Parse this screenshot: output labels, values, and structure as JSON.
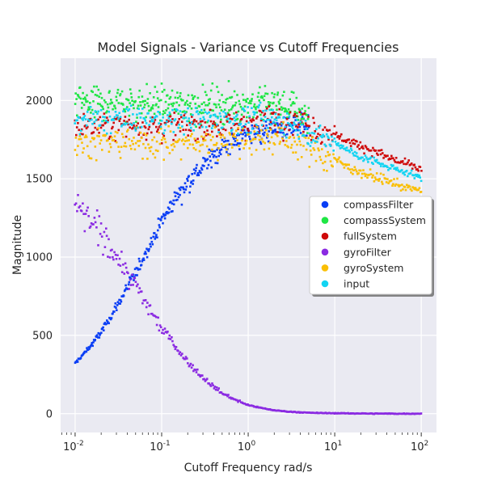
{
  "chart_data": {
    "type": "scatter",
    "title": "Model Signals - Variance vs Cutoff Frequencies",
    "xlabel": "Cutoff Frequency rad/s",
    "ylabel": "Magnitude",
    "xscale": "log",
    "xlim": [
      0.0068,
      150
    ],
    "ylim": [
      -120,
      2270
    ],
    "grid": true,
    "legend_loc": "center right",
    "background": "#eaeaf2",
    "x_ticks": [
      {
        "value": 0.01,
        "base": "10",
        "exp": "-2"
      },
      {
        "value": 0.1,
        "base": "10",
        "exp": "-1"
      },
      {
        "value": 1,
        "base": "10",
        "exp": "0"
      },
      {
        "value": 10,
        "base": "10",
        "exp": "1"
      },
      {
        "value": 100,
        "base": "10",
        "exp": "2"
      }
    ],
    "y_ticks": [
      {
        "value": 0,
        "label": "0"
      },
      {
        "value": 500,
        "label": "500"
      },
      {
        "value": 1000,
        "label": "1000"
      },
      {
        "value": 1500,
        "label": "1500"
      },
      {
        "value": 2000,
        "label": "2000"
      }
    ],
    "series": [
      {
        "name": "compassFilter",
        "color": "#0a3ef5",
        "x": [
          0.01,
          0.015,
          0.02,
          0.03,
          0.05,
          0.07,
          0.1,
          0.15,
          0.2,
          0.3,
          0.5,
          0.7,
          1,
          1.5,
          2,
          3,
          5
        ],
        "y": [
          320,
          430,
          520,
          680,
          900,
          1060,
          1230,
          1390,
          1480,
          1580,
          1700,
          1740,
          1790,
          1800,
          1820,
          1830,
          1840
        ]
      },
      {
        "name": "compassSystem",
        "color": "#1fe644",
        "x": [
          0.01,
          0.02,
          0.05,
          0.1,
          0.2,
          0.5,
          1,
          2,
          3,
          5
        ],
        "y": [
          1990,
          1985,
          1985,
          1980,
          1975,
          1975,
          1980,
          1980,
          1960,
          1900
        ]
      },
      {
        "name": "fullSystem",
        "color": "#cf0a0a",
        "x": [
          0.01,
          0.02,
          0.05,
          0.1,
          0.2,
          0.5,
          1,
          2,
          3,
          5,
          10,
          20,
          50,
          100
        ],
        "y": [
          1830,
          1840,
          1840,
          1840,
          1840,
          1840,
          1860,
          1900,
          1880,
          1840,
          1780,
          1710,
          1620,
          1560
        ]
      },
      {
        "name": "gyroFilter",
        "color": "#8b2be2",
        "x": [
          0.01,
          0.015,
          0.02,
          0.03,
          0.05,
          0.07,
          0.1,
          0.15,
          0.2,
          0.3,
          0.5,
          0.7,
          1,
          1.5,
          2,
          3,
          5,
          7,
          10,
          20,
          50,
          100
        ],
        "y": [
          1320,
          1230,
          1150,
          1010,
          810,
          680,
          550,
          420,
          330,
          230,
          130,
          90,
          55,
          33,
          22,
          12,
          6,
          4,
          3,
          1,
          0,
          0
        ]
      },
      {
        "name": "gyroSystem",
        "color": "#fabf05",
        "x": [
          0.01,
          0.02,
          0.05,
          0.1,
          0.2,
          0.5,
          1,
          2,
          3,
          5,
          10,
          20,
          50,
          100
        ],
        "y": [
          1730,
          1730,
          1730,
          1730,
          1730,
          1740,
          1760,
          1760,
          1740,
          1700,
          1620,
          1540,
          1470,
          1420
        ]
      },
      {
        "name": "input",
        "color": "#12d4f2",
        "x": [
          0.01,
          0.02,
          0.05,
          0.1,
          0.2,
          0.5,
          1,
          2,
          3,
          5,
          10,
          20,
          50,
          100
        ],
        "y": [
          1870,
          1880,
          1880,
          1880,
          1880,
          1880,
          1880,
          1880,
          1850,
          1800,
          1730,
          1640,
          1560,
          1510
        ]
      }
    ]
  }
}
